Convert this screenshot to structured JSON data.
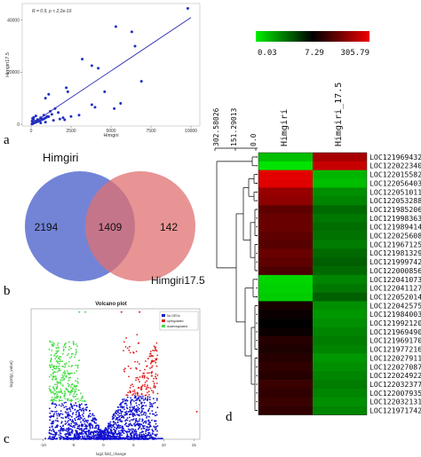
{
  "panels": {
    "a": "a",
    "b": "b",
    "c": "c",
    "d": "d"
  },
  "colors": {
    "scatter_point": "#1f2fbf",
    "venn_left": "#5b6fd0",
    "venn_right": "#e07070",
    "up": "#e02020",
    "down": "#44dd44",
    "nodeg": "#1010d0",
    "heat_low": "#00ee00",
    "heat_mid": "#000000",
    "heat_high": "#ee0000"
  },
  "chart_data": [
    {
      "id": "scatter",
      "type": "scatter",
      "title": "",
      "annotation": "R = 0.9, p < 2.2e-16",
      "xlabel": "Himgiri",
      "ylabel": "Himgiri17.5",
      "xlim": [
        0,
        10000
      ],
      "ylim": [
        0,
        45000
      ],
      "xticks": [
        "0",
        "2500",
        "5000",
        "7500",
        "10000"
      ],
      "xtick_values": [
        0,
        2500,
        5000,
        7500,
        10000
      ],
      "yticks": [
        "0",
        "20000",
        "40000"
      ],
      "ytick_values": [
        0,
        20000,
        40000
      ],
      "trend_line": {
        "x": [
          0,
          10000
        ],
        "y": [
          0,
          41000
        ]
      },
      "points": [
        [
          9800,
          44500
        ],
        [
          6300,
          35500
        ],
        [
          5300,
          37500
        ],
        [
          6500,
          30000
        ],
        [
          4200,
          21500
        ],
        [
          3800,
          22500
        ],
        [
          3200,
          25000
        ],
        [
          2200,
          14000
        ],
        [
          2300,
          12500
        ],
        [
          1100,
          11500
        ],
        [
          900,
          10000
        ],
        [
          3800,
          7500
        ],
        [
          4600,
          12500
        ],
        [
          4000,
          6500
        ],
        [
          5200,
          6000
        ],
        [
          6900,
          16500
        ],
        [
          5600,
          8000
        ],
        [
          1500,
          6000
        ],
        [
          1200,
          5000
        ],
        [
          800,
          3500
        ],
        [
          600,
          2500
        ],
        [
          400,
          1800
        ],
        [
          300,
          1200
        ],
        [
          200,
          800
        ],
        [
          150,
          400
        ],
        [
          100,
          200
        ],
        [
          50,
          100
        ],
        [
          500,
          1500
        ],
        [
          700,
          2000
        ],
        [
          1000,
          3000
        ],
        [
          1300,
          3800
        ],
        [
          1700,
          4500
        ],
        [
          2000,
          2500
        ],
        [
          2500,
          3000
        ],
        [
          3000,
          3500
        ],
        [
          250,
          600
        ],
        [
          350,
          900
        ],
        [
          450,
          1100
        ],
        [
          550,
          1400
        ],
        [
          650,
          1700
        ],
        [
          750,
          1900
        ],
        [
          850,
          2200
        ],
        [
          950,
          2600
        ],
        [
          1100,
          2900
        ],
        [
          80,
          150
        ],
        [
          120,
          300
        ],
        [
          180,
          500
        ],
        [
          220,
          700
        ],
        [
          380,
          1000
        ],
        [
          420,
          1300
        ],
        [
          60,
          1200
        ],
        [
          90,
          2200
        ],
        [
          140,
          1800
        ],
        [
          300,
          3200
        ],
        [
          160,
          2600
        ],
        [
          1400,
          1500
        ],
        [
          1800,
          2000
        ],
        [
          2100,
          1700
        ],
        [
          600,
          500
        ],
        [
          900,
          800
        ]
      ]
    },
    {
      "id": "volcano",
      "type": "scatter",
      "title": "Volcano plot",
      "xlabel": "log2.fold_change",
      "ylabel": "-log10(p_value)",
      "xticks": [
        "-10",
        "-5",
        "0",
        "5",
        "10",
        "15"
      ],
      "xtick_values": [
        -10,
        -5,
        0,
        5,
        10,
        15
      ],
      "xlim": [
        -12,
        16
      ],
      "ylim": [
        0,
        330
      ],
      "legend": [
        "No DEGs",
        "upregulated",
        "downregulated"
      ],
      "legend_position": "top-right"
    },
    {
      "id": "heatmap",
      "type": "heatmap",
      "columns": [
        "Himgiri",
        "Himgiri_17.5"
      ],
      "colorbar_labels": [
        "0.03",
        "7.29",
        "305.79"
      ],
      "dendrogram_scale": [
        "302.58026",
        "151.29013",
        "0.0"
      ],
      "rows": [
        "LOC121969432",
        "LOC122022340",
        "LOC122015582",
        "LOC122056403",
        "LOC122051011",
        "LOC122053288",
        "LOC121985206",
        "LOC121998363",
        "LOC121989414",
        "LOC122025608",
        "LOC121967125",
        "LOC121981329",
        "LOC121999742",
        "LOC122000856",
        "LOC122041073",
        "LOC122041127",
        "LOC122052014",
        "LOC122042575",
        "LOC121984003",
        "LOC121992120",
        "LOC121969490",
        "LOC121969170",
        "LOC121977216",
        "LOC122027911",
        "LOC122027087",
        "LOC122024922",
        "LOC122032377",
        "LOC122007935",
        "LOC122032131",
        "LOC121971742"
      ],
      "values": [
        [
          0.1,
          0.85
        ],
        [
          0.02,
          0.92
        ],
        [
          0.98,
          0.12
        ],
        [
          0.97,
          0.1
        ],
        [
          0.82,
          0.2
        ],
        [
          0.8,
          0.22
        ],
        [
          0.7,
          0.28
        ],
        [
          0.72,
          0.25
        ],
        [
          0.72,
          0.27
        ],
        [
          0.7,
          0.26
        ],
        [
          0.68,
          0.24
        ],
        [
          0.72,
          0.28
        ],
        [
          0.7,
          0.3
        ],
        [
          0.66,
          0.28
        ],
        [
          0.05,
          0.22
        ],
        [
          0.06,
          0.25
        ],
        [
          0.07,
          0.3
        ],
        [
          0.55,
          0.2
        ],
        [
          0.52,
          0.18
        ],
        [
          0.5,
          0.2
        ],
        [
          0.52,
          0.22
        ],
        [
          0.58,
          0.24
        ],
        [
          0.56,
          0.22
        ],
        [
          0.58,
          0.18
        ],
        [
          0.6,
          0.2
        ],
        [
          0.58,
          0.22
        ],
        [
          0.62,
          0.24
        ],
        [
          0.6,
          0.22
        ],
        [
          0.62,
          0.2
        ],
        [
          0.6,
          0.22
        ]
      ]
    }
  ],
  "venn": {
    "left_label": "Himgiri",
    "right_label": "Himgiri17.5",
    "left_only": "2194",
    "shared": "1409",
    "right_only": "142"
  }
}
